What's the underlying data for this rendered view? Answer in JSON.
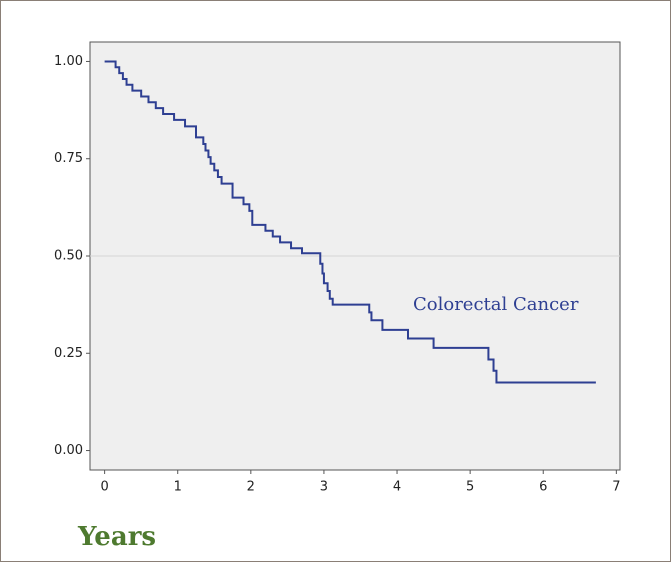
{
  "chart_data": {
    "type": "step",
    "xlabel": "Years",
    "annotation": "Colorectal Cancer",
    "series": [
      {
        "name": "Colorectal Cancer",
        "color": "#2e3f92",
        "x": [
          0,
          0.15,
          0.2,
          0.25,
          0.3,
          0.38,
          0.5,
          0.6,
          0.7,
          0.8,
          0.95,
          1.1,
          1.25,
          1.35,
          1.38,
          1.42,
          1.45,
          1.5,
          1.55,
          1.6,
          1.75,
          1.9,
          1.98,
          2.02,
          2.2,
          2.3,
          2.4,
          2.55,
          2.7,
          2.95,
          2.98,
          3.0,
          3.05,
          3.08,
          3.12,
          3.62,
          3.65,
          3.8,
          4.15,
          4.5,
          5.25,
          5.32,
          5.36,
          6.72
        ],
        "values": [
          1.0,
          0.985,
          0.97,
          0.955,
          0.94,
          0.925,
          0.91,
          0.895,
          0.88,
          0.865,
          0.85,
          0.833,
          0.805,
          0.788,
          0.771,
          0.754,
          0.737,
          0.72,
          0.703,
          0.686,
          0.65,
          0.633,
          0.616,
          0.58,
          0.565,
          0.55,
          0.535,
          0.52,
          0.507,
          0.48,
          0.455,
          0.43,
          0.41,
          0.39,
          0.375,
          0.355,
          0.335,
          0.31,
          0.288,
          0.264,
          0.234,
          0.205,
          0.175,
          0.175
        ]
      }
    ],
    "xlim": [
      -0.2,
      7.05
    ],
    "xticks": [
      0,
      1,
      2,
      3,
      4,
      5,
      6,
      7
    ],
    "ylim": [
      -0.05,
      1.05
    ],
    "yticks": [
      {
        "value": 0,
        "label": "0.00"
      },
      {
        "value": 0.25,
        "label": "0.25"
      },
      {
        "value": 0.5,
        "label": "0.50"
      },
      {
        "value": 0.75,
        "label": "0.75"
      },
      {
        "value": 1,
        "label": "1.00"
      }
    ],
    "reference_line": 0.5
  }
}
